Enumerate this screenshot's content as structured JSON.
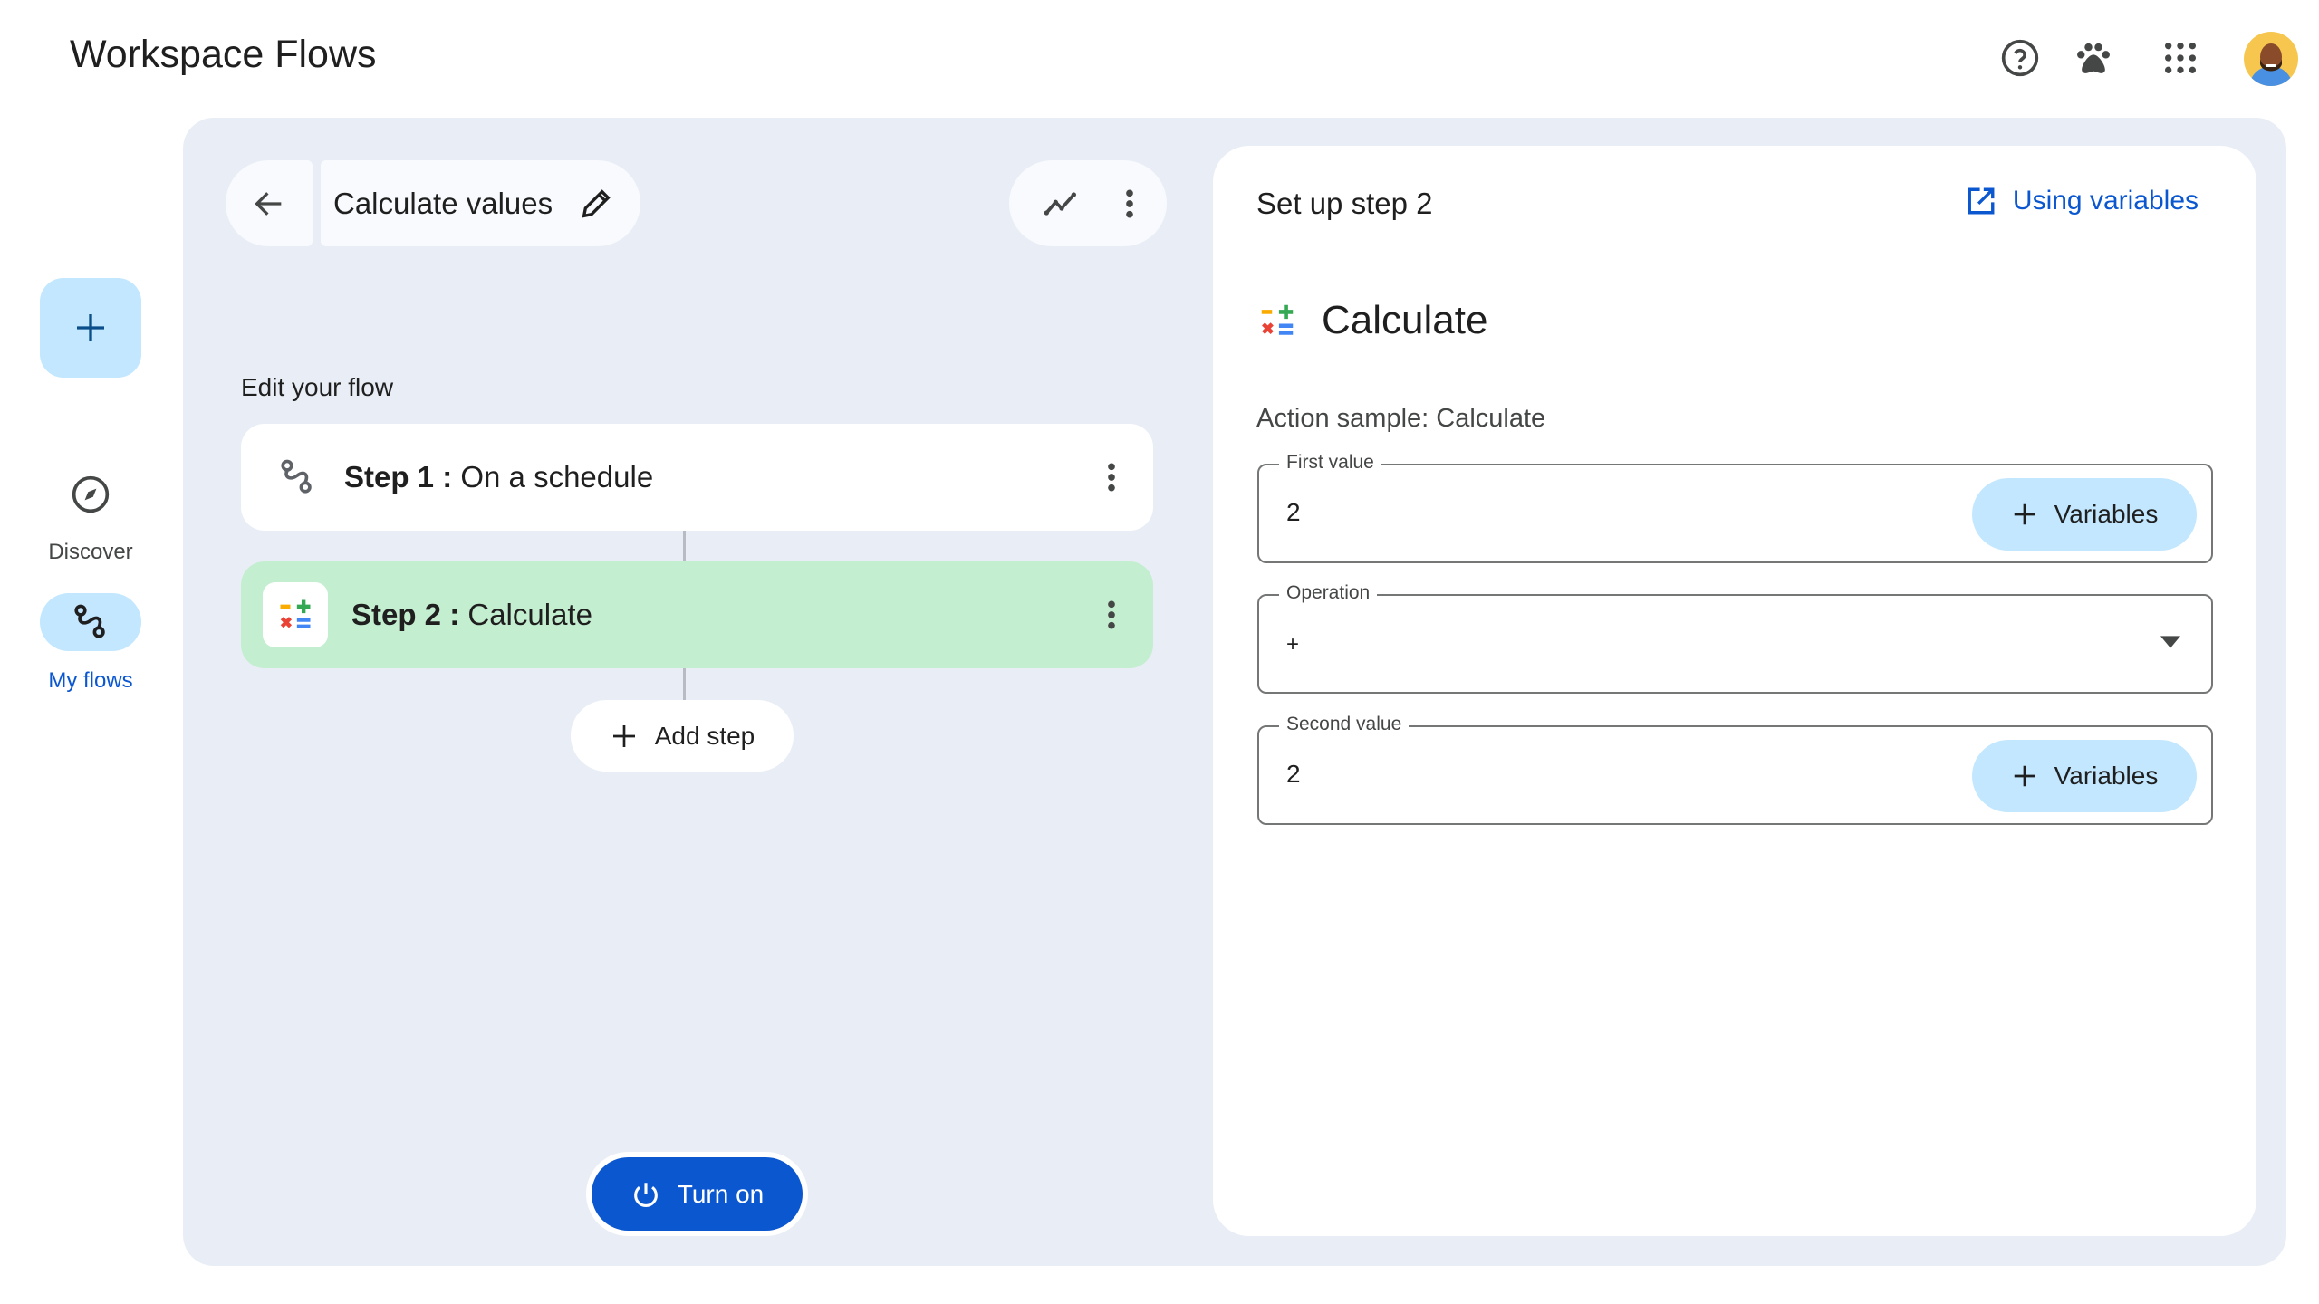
{
  "app": {
    "title": "Workspace Flows"
  },
  "topbar": {
    "icons": [
      "help-icon",
      "paw-icon",
      "apps-grid-icon",
      "avatar"
    ]
  },
  "sidebar": {
    "create_icon": "plus-icon",
    "items": [
      {
        "label": "Discover",
        "icon": "compass-icon",
        "active": false
      },
      {
        "label": "My flows",
        "icon": "flows-icon",
        "active": true
      }
    ]
  },
  "flow": {
    "name": "Calculate values",
    "section_title": "Edit your flow",
    "steps": [
      {
        "prefix": "Step 1 :",
        "name": " On a schedule",
        "icon": "flows-icon"
      },
      {
        "prefix": "Step 2 :",
        "name": " Calculate",
        "icon": "calculate-icon",
        "selected": true
      }
    ],
    "add_step_label": "Add step",
    "turn_on_label": "Turn on"
  },
  "setup": {
    "heading": "Set up step 2",
    "help_link": "Using variables",
    "action_title": "Calculate",
    "action_sample": "Action sample: Calculate",
    "fields": [
      {
        "label": "First value",
        "value": "2",
        "button": "Variables"
      },
      {
        "label": "Operation",
        "value": "+"
      },
      {
        "label": "Second value",
        "value": "2",
        "button": "Variables"
      }
    ]
  },
  "colors": {
    "accent": "#0b57d0",
    "selected_step": "#c4eed0",
    "chip": "#c2e7ff",
    "canvas": "#e9eef6"
  }
}
